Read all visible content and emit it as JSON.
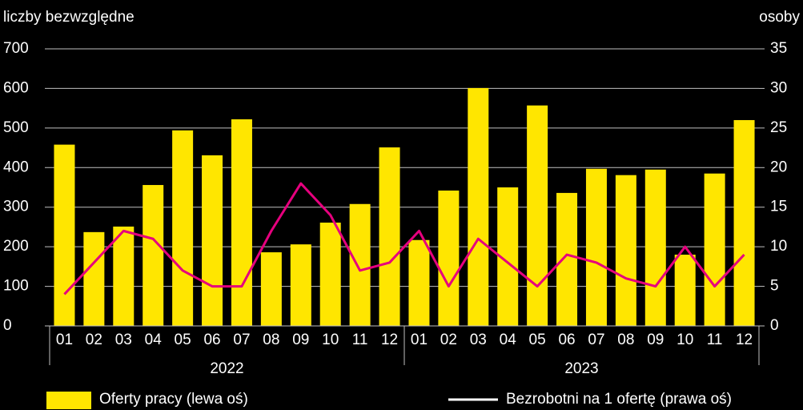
{
  "chart_data": {
    "type": "bar_line",
    "y_label": "liczby bezwzględne",
    "y2_label": "osoby",
    "categories": [
      "01",
      "02",
      "03",
      "04",
      "05",
      "06",
      "07",
      "08",
      "09",
      "10",
      "11",
      "12",
      "01",
      "02",
      "03",
      "04",
      "05",
      "06",
      "07",
      "08",
      "09",
      "10",
      "11",
      "12"
    ],
    "groups": [
      {
        "label": "2022",
        "count": 12
      },
      {
        "label": "2023",
        "count": 12
      }
    ],
    "series": [
      {
        "name": "Oferty pracy (lewa oś)",
        "type": "bar",
        "color": "#ffe600",
        "values": [
          458,
          237,
          251,
          356,
          494,
          431,
          522,
          186,
          206,
          261,
          308,
          451,
          217,
          342,
          601,
          350,
          557,
          336,
          397,
          381,
          395,
          180,
          385,
          520
        ]
      },
      {
        "name": "Bezrobotni na 1 ofertę (prawa oś)",
        "type": "line",
        "axis": "y2",
        "color": "#e6007e",
        "legend_color": "#ffffff",
        "values": [
          4,
          8,
          12,
          11,
          7,
          5,
          5,
          12,
          18,
          14,
          7,
          8,
          12,
          5,
          11,
          8,
          5,
          9,
          8,
          6,
          5,
          10,
          5,
          9
        ]
      }
    ],
    "ylim": [
      0,
      700
    ],
    "yticks": [
      0,
      100,
      200,
      300,
      400,
      500,
      600,
      700
    ],
    "y2lim": [
      0,
      35
    ],
    "y2ticks": [
      0,
      5,
      10,
      15,
      20,
      25,
      30,
      35
    ],
    "grid": true
  }
}
